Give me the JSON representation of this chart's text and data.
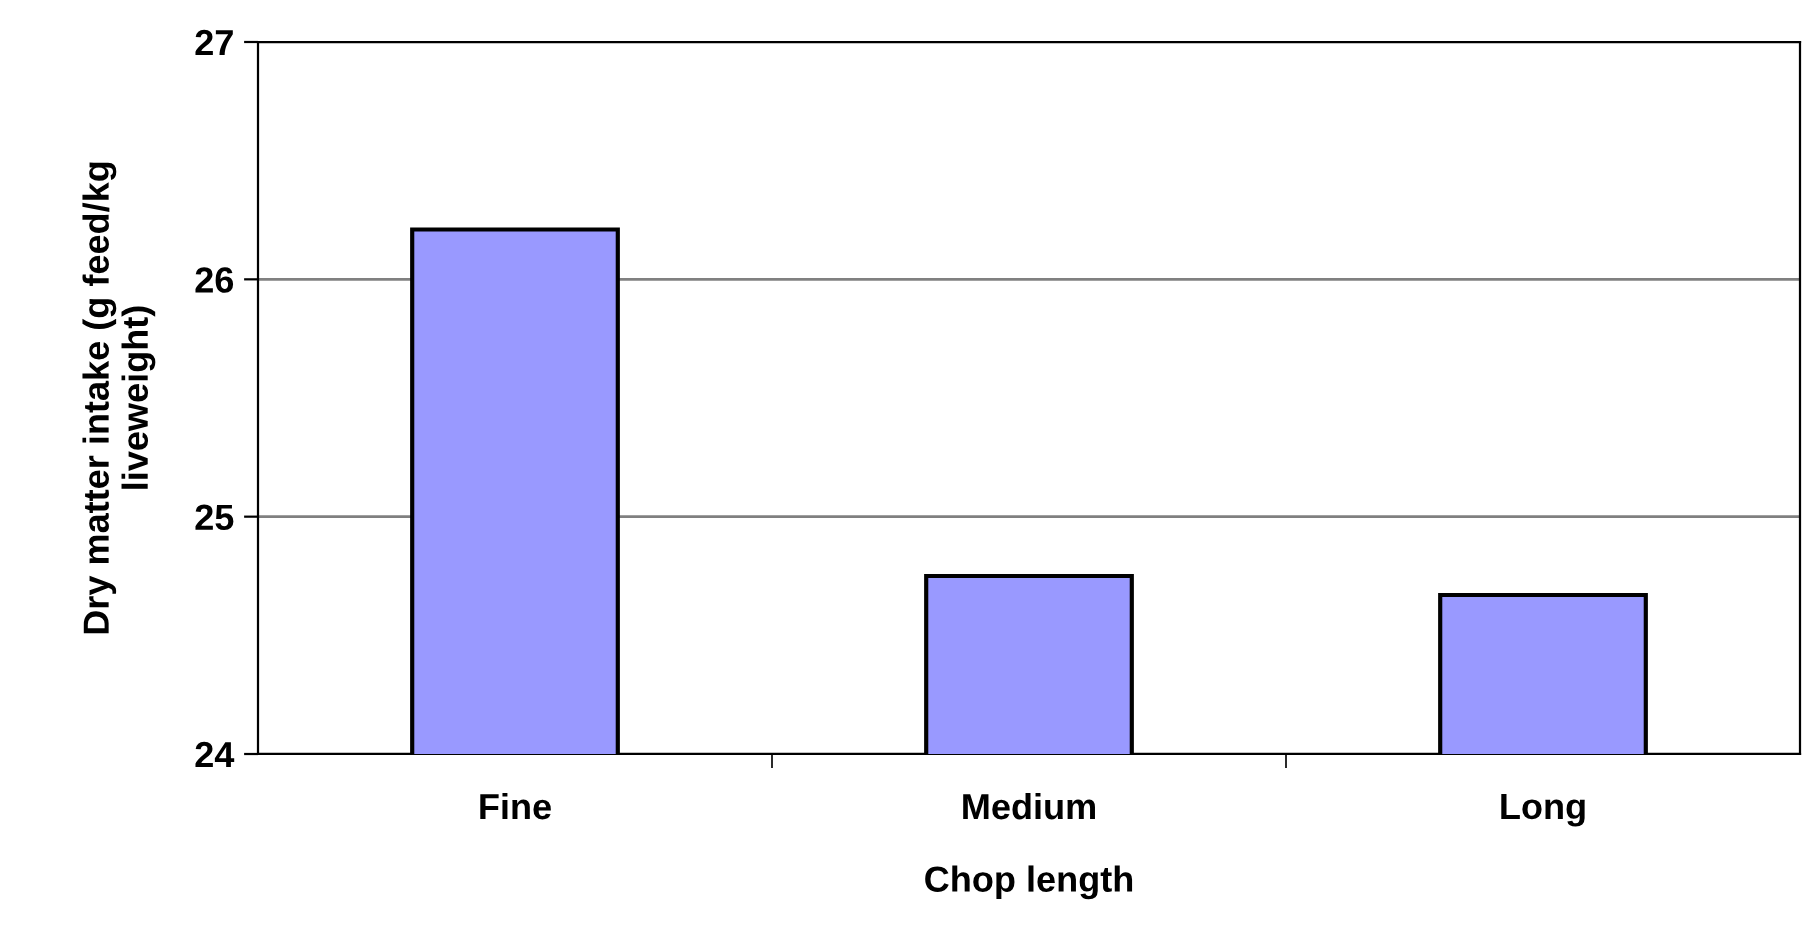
{
  "chart_data": {
    "type": "bar",
    "xlabel": "Chop length",
    "ylabel": "Dry matter intake (g feed/kg\nliveweight)",
    "categories": [
      "Fine",
      "Medium",
      "Long"
    ],
    "values": [
      26.21,
      24.75,
      24.67
    ],
    "color": "#9999ff",
    "ylim": [
      24,
      27
    ],
    "yticks": [
      24,
      25,
      26,
      27
    ],
    "grid": "y",
    "legend": false
  }
}
